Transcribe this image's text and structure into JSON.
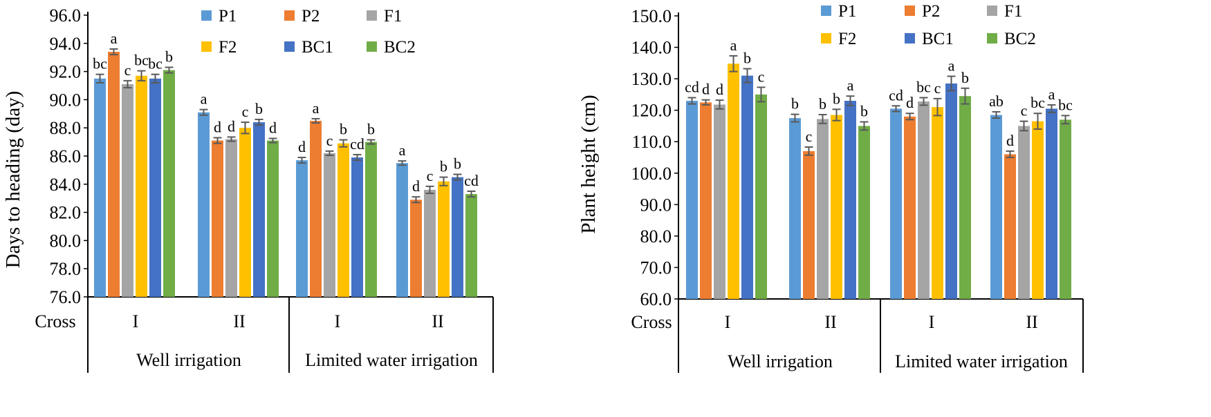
{
  "colors": {
    "P1": "#5B9BD5",
    "P2": "#ED7D31",
    "F1": "#A5A5A5",
    "F2": "#FFC000",
    "BC1": "#4472C4",
    "BC2": "#70AD47",
    "error_bar": "#595959",
    "axis": "#000000"
  },
  "chart_data": [
    {
      "type": "bar",
      "title": "",
      "xlabel": "",
      "ylabel": "Days to heading (day)",
      "ylim": [
        76.0,
        96.0
      ],
      "yticks": [
        "76.0",
        "78.0",
        "80.0",
        "82.0",
        "84.0",
        "86.0",
        "88.0",
        "90.0",
        "92.0",
        "94.0",
        "96.0"
      ],
      "cross_label": "Cross",
      "categories": [
        "I",
        "II",
        "I",
        "II"
      ],
      "groups": [
        {
          "label": "Well  irrigation",
          "span": [
            0,
            1
          ]
        },
        {
          "label": "Limited water irrigation",
          "span": [
            2,
            3
          ]
        }
      ],
      "legend_position": "top",
      "series": [
        {
          "name": "P1",
          "values": [
            91.5,
            89.1,
            85.7,
            85.5
          ],
          "errors": [
            0.3,
            0.2,
            0.2,
            0.15
          ],
          "letters": [
            "bc",
            "a",
            "d",
            "a"
          ]
        },
        {
          "name": "P2",
          "values": [
            93.4,
            87.1,
            88.5,
            82.9
          ],
          "errors": [
            0.2,
            0.2,
            0.15,
            0.2
          ],
          "letters": [
            "a",
            "d",
            "a",
            "d"
          ]
        },
        {
          "name": "F1",
          "values": [
            91.1,
            87.2,
            86.2,
            83.6
          ],
          "errors": [
            0.25,
            0.15,
            0.15,
            0.25
          ],
          "letters": [
            "c",
            "d",
            "c",
            "c"
          ]
        },
        {
          "name": "F2",
          "values": [
            91.7,
            88.0,
            86.9,
            84.2
          ],
          "errors": [
            0.35,
            0.4,
            0.25,
            0.3
          ],
          "letters": [
            "bc",
            "c",
            "b",
            "b"
          ]
        },
        {
          "name": "BC1",
          "values": [
            91.5,
            88.4,
            85.9,
            84.5
          ],
          "errors": [
            0.3,
            0.2,
            0.2,
            0.2
          ],
          "letters": [
            "bc",
            "b",
            "cd",
            "b"
          ]
        },
        {
          "name": "BC2",
          "values": [
            92.1,
            87.1,
            87.0,
            83.3
          ],
          "errors": [
            0.2,
            0.15,
            0.15,
            0.2
          ],
          "letters": [
            "b",
            "d",
            "b",
            "cd"
          ]
        }
      ]
    },
    {
      "type": "bar",
      "title": "",
      "xlabel": "",
      "ylabel": "Plant height (cm)",
      "ylim": [
        60.0,
        150.0
      ],
      "yticks": [
        "60.0",
        "70.0",
        "80.0",
        "90.0",
        "100.0",
        "110.0",
        "120.0",
        "130.0",
        "140.0",
        "150.0"
      ],
      "cross_label": "Cross",
      "categories": [
        "I",
        "II",
        "I",
        "II"
      ],
      "groups": [
        {
          "label": "Well  irrigation",
          "span": [
            0,
            1
          ]
        },
        {
          "label": "Limited water irrigation",
          "span": [
            2,
            3
          ]
        }
      ],
      "legend_position": "top",
      "series": [
        {
          "name": "P1",
          "values": [
            123.0,
            117.5,
            120.5,
            118.5
          ],
          "errors": [
            1.0,
            1.2,
            0.9,
            1.0
          ],
          "letters": [
            "cd",
            "b",
            "cd",
            "ab"
          ]
        },
        {
          "name": "P2",
          "values": [
            122.5,
            107.0,
            118.0,
            106.0
          ],
          "errors": [
            0.8,
            1.3,
            1.0,
            1.0
          ],
          "letters": [
            "d",
            "c",
            "d",
            "d"
          ]
        },
        {
          "name": "F1",
          "values": [
            121.8,
            117.2,
            122.8,
            115.0
          ],
          "errors": [
            1.4,
            1.4,
            1.2,
            1.5
          ],
          "letters": [
            "d",
            "b",
            "bc",
            "c"
          ]
        },
        {
          "name": "F2",
          "values": [
            134.8,
            118.5,
            121.0,
            116.5
          ],
          "errors": [
            2.5,
            1.8,
            2.7,
            2.5
          ],
          "letters": [
            "a",
            "b",
            "c",
            "bc"
          ]
        },
        {
          "name": "BC1",
          "values": [
            131.0,
            123.0,
            128.5,
            120.5
          ],
          "errors": [
            2.2,
            1.5,
            2.3,
            1.2
          ],
          "letters": [
            "b",
            "a",
            "a",
            "a"
          ]
        },
        {
          "name": "BC2",
          "values": [
            125.0,
            115.0,
            124.5,
            117.0
          ],
          "errors": [
            2.3,
            1.3,
            2.5,
            1.3
          ],
          "letters": [
            "c",
            "b",
            "b",
            "bc"
          ]
        }
      ]
    }
  ]
}
